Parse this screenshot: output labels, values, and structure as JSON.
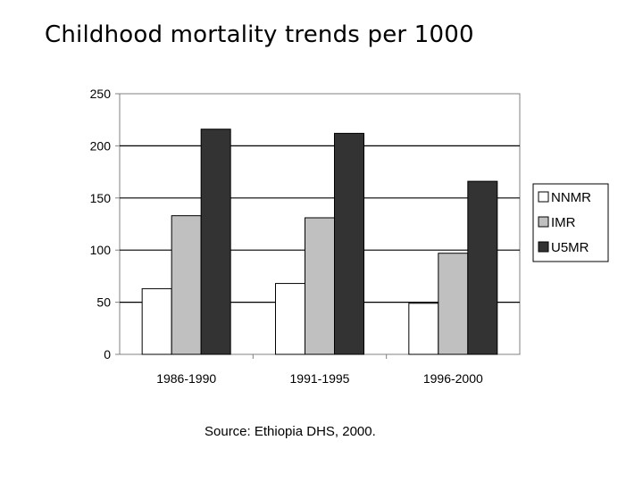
{
  "title": "Childhood mortality trends per 1000",
  "source": "Source: Ethiopia DHS, 2000.",
  "chart_data": {
    "type": "bar",
    "categories": [
      "1986-1990",
      "1991-1995",
      "1996-2000"
    ],
    "series": [
      {
        "name": "NNMR",
        "color": "#ffffff",
        "values": [
          63,
          68,
          49
        ]
      },
      {
        "name": "IMR",
        "color": "#c0c0c0",
        "values": [
          133,
          131,
          97
        ]
      },
      {
        "name": "U5MR",
        "color": "#333333",
        "values": [
          216,
          212,
          166
        ]
      }
    ],
    "ylim": [
      0,
      250
    ],
    "yticks": [
      0,
      50,
      100,
      150,
      200,
      250
    ],
    "grid": true,
    "legend": "right",
    "xlabel": "",
    "ylabel": ""
  }
}
